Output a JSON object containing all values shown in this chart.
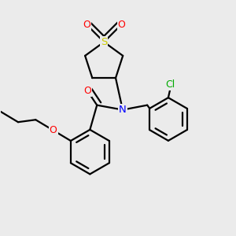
{
  "background_color": "#ebebeb",
  "atom_colors": {
    "O": "#ff0000",
    "N": "#0000ff",
    "S": "#cccc00",
    "Cl": "#00aa00",
    "C": "#000000"
  },
  "bond_color": "#000000",
  "bond_width": 1.6,
  "figsize": [
    3.0,
    3.0
  ],
  "dpi": 100
}
